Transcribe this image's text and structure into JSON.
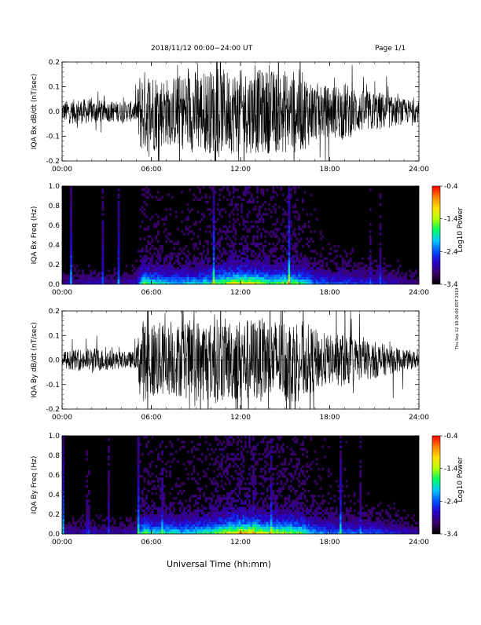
{
  "header": {
    "date_range": "2018/11/12   00:00−24:00 UT",
    "page": "Page 1/1"
  },
  "footer": {
    "xlabel": "Universal Time (hh:mm)"
  },
  "side_stamp": "Thu Sep 12 18:26:09 EDT 2019",
  "colorbar": {
    "label": "Log10 Power",
    "ticks": [
      "-0.4",
      "-1.4",
      "-2.4",
      "-3.4"
    ],
    "range": [
      -3.4,
      -0.4
    ],
    "colors": [
      "#000000",
      "#3a0066",
      "#2a00c8",
      "#0050ff",
      "#00c8ff",
      "#00ff60",
      "#b4ff00",
      "#ffe000",
      "#ff8000",
      "#ff0000"
    ]
  },
  "chart_data": [
    {
      "type": "line",
      "ylabel": "IQA Bx dB/dt (nT/sec)",
      "xlim": [
        0,
        24
      ],
      "ylim": [
        -0.2,
        0.2
      ],
      "x_ticks": [
        "00:00",
        "06:00",
        "12:00",
        "18:00",
        "24:00"
      ],
      "y_ticks": [
        "0.2",
        "0.1",
        "0.0",
        "-0.1",
        "-0.2"
      ],
      "envelope": {
        "x_hours": [
          0,
          1,
          2,
          3,
          4,
          5,
          5.2,
          5.5,
          6,
          7,
          8,
          9,
          10,
          11,
          12,
          13,
          14,
          15,
          16,
          17,
          18,
          19,
          20,
          21,
          22,
          23,
          24
        ],
        "amplitude": [
          0.05,
          0.06,
          0.06,
          0.05,
          0.05,
          0.05,
          0.19,
          0.2,
          0.2,
          0.16,
          0.18,
          0.2,
          0.2,
          0.2,
          0.2,
          0.2,
          0.2,
          0.2,
          0.2,
          0.14,
          0.12,
          0.14,
          0.1,
          0.1,
          0.08,
          0.06,
          0.05
        ]
      }
    },
    {
      "type": "heatmap",
      "ylabel": "IQA Bx Freq (Hz)",
      "xlim": [
        0,
        24
      ],
      "ylim": [
        0,
        1.0
      ],
      "x_ticks": [
        "00:00",
        "06:00",
        "12:00",
        "18:00",
        "24:00"
      ],
      "y_ticks": [
        "1.0",
        "0.8",
        "0.6",
        "0.4",
        "0.2",
        "0.0"
      ],
      "low_freq_intensity": {
        "x_hours": [
          0,
          1,
          2,
          3,
          4,
          5,
          5.5,
          6,
          7,
          8,
          9,
          10,
          11,
          12,
          13,
          14,
          15,
          16,
          17,
          18,
          19,
          20,
          21,
          22,
          23,
          24
        ],
        "level": [
          0.15,
          0.15,
          0.18,
          0.15,
          0.15,
          0.2,
          0.6,
          0.5,
          0.45,
          0.4,
          0.45,
          0.5,
          0.65,
          0.75,
          0.7,
          0.55,
          0.6,
          0.55,
          0.35,
          0.3,
          0.3,
          0.25,
          0.25,
          0.2,
          0.15,
          0.12
        ]
      }
    },
    {
      "type": "line",
      "ylabel": "IQA By dB/dt (nT/sec)",
      "xlim": [
        0,
        24
      ],
      "ylim": [
        -0.2,
        0.2
      ],
      "x_ticks": [
        "00:00",
        "06:00",
        "12:00",
        "18:00",
        "24:00"
      ],
      "y_ticks": [
        "0.2",
        "0.1",
        "0.0",
        "-0.1",
        "-0.2"
      ],
      "envelope": {
        "x_hours": [
          0,
          1,
          2,
          3,
          4,
          5,
          5.2,
          5.5,
          6,
          7,
          8,
          9,
          10,
          11,
          12,
          13,
          14,
          15,
          16,
          17,
          18,
          19,
          20,
          21,
          22,
          23,
          24
        ],
        "amplitude": [
          0.04,
          0.05,
          0.06,
          0.05,
          0.04,
          0.04,
          0.18,
          0.2,
          0.2,
          0.17,
          0.18,
          0.2,
          0.2,
          0.2,
          0.2,
          0.2,
          0.2,
          0.2,
          0.2,
          0.15,
          0.12,
          0.13,
          0.1,
          0.09,
          0.07,
          0.05,
          0.04
        ]
      }
    },
    {
      "type": "heatmap",
      "ylabel": "IQA By Freq (Hz)",
      "xlim": [
        0,
        24
      ],
      "ylim": [
        0,
        1.0
      ],
      "x_ticks": [
        "00:00",
        "06:00",
        "12:00",
        "18:00",
        "24:00"
      ],
      "y_ticks": [
        "1.0",
        "0.8",
        "0.6",
        "0.4",
        "0.2",
        "0.0"
      ],
      "low_freq_intensity": {
        "x_hours": [
          0,
          1,
          2,
          3,
          4,
          5,
          5.5,
          6,
          7,
          8,
          9,
          10,
          11,
          12,
          13,
          14,
          15,
          16,
          17,
          18,
          19,
          20,
          21,
          22,
          23,
          24
        ],
        "level": [
          0.15,
          0.15,
          0.18,
          0.15,
          0.15,
          0.2,
          0.6,
          0.5,
          0.5,
          0.45,
          0.5,
          0.55,
          0.7,
          0.8,
          0.75,
          0.65,
          0.65,
          0.6,
          0.4,
          0.35,
          0.35,
          0.3,
          0.3,
          0.25,
          0.2,
          0.15
        ]
      }
    }
  ]
}
